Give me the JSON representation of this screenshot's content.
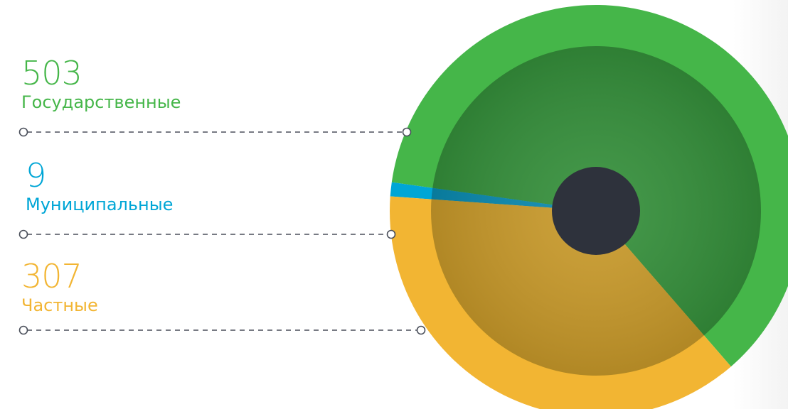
{
  "chart_data": {
    "type": "pie",
    "title": "",
    "categories": [
      "Государственные",
      "Муниципальные",
      "Частные"
    ],
    "values": [
      503,
      9,
      307
    ],
    "value_labels": [
      "503",
      "9",
      "307"
    ],
    "colors": [
      "#45b649",
      "#00a6d6",
      "#f2b533"
    ],
    "inner_colors": [
      "#35903b",
      "#0a8ab0",
      "#c99a2a"
    ],
    "hub_color": "#2e323c",
    "legend_position": "left",
    "start_angle_deg": 188
  }
}
